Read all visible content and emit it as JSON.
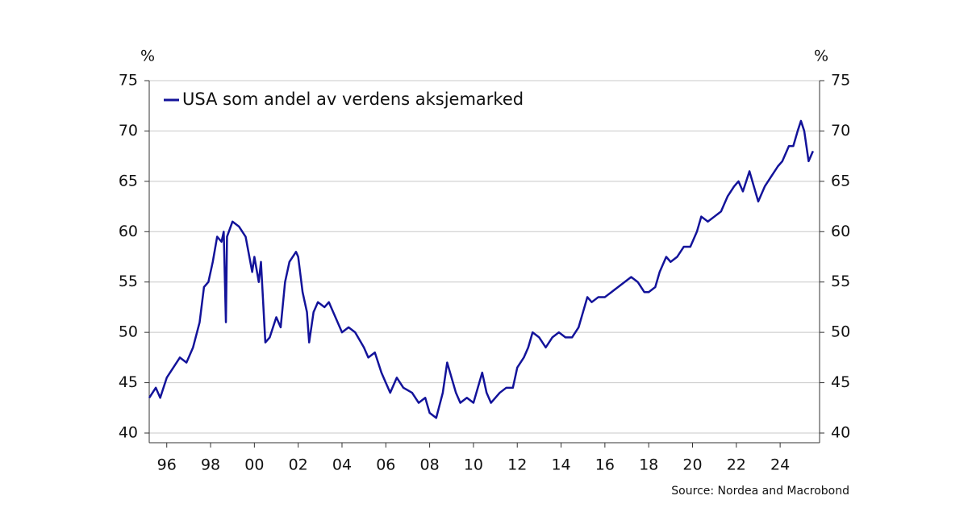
{
  "chart_data": {
    "type": "line",
    "y_unit": "%",
    "y2_unit": "%",
    "source": "Source: Nordea and Macrobond",
    "legend": "top-left",
    "grid": true,
    "xlim": [
      1995.2,
      2025.8
    ],
    "xticks": [
      {
        "value": 1996,
        "label": "96"
      },
      {
        "value": 1998,
        "label": "98"
      },
      {
        "value": 2000,
        "label": "00"
      },
      {
        "value": 2002,
        "label": "02"
      },
      {
        "value": 2004,
        "label": "04"
      },
      {
        "value": 2006,
        "label": "06"
      },
      {
        "value": 2008,
        "label": "08"
      },
      {
        "value": 2010,
        "label": "10"
      },
      {
        "value": 2012,
        "label": "12"
      },
      {
        "value": 2014,
        "label": "14"
      },
      {
        "value": 2016,
        "label": "16"
      },
      {
        "value": 2018,
        "label": "18"
      },
      {
        "value": 2020,
        "label": "20"
      },
      {
        "value": 2022,
        "label": "22"
      },
      {
        "value": 2024,
        "label": "24"
      }
    ],
    "ylim": [
      40,
      75
    ],
    "yticks": [
      40,
      45,
      50,
      55,
      60,
      65,
      70,
      75
    ],
    "y2lim": [
      40,
      75
    ],
    "y2ticks": [
      40,
      45,
      50,
      55,
      60,
      65,
      70,
      75
    ],
    "x": [
      1995.2,
      1995.5,
      1995.7,
      1996,
      1996.3,
      1996.6,
      1996.9,
      1997.2,
      1997.5,
      1997.7,
      1997.9,
      1998.1,
      1998.3,
      1998.5,
      1998.6,
      1998.7,
      1998.75,
      1999,
      1999.3,
      1999.6,
      1999.9,
      2000,
      2000.2,
      2000.3,
      2000.5,
      2000.7,
      2001,
      2001.2,
      2001.4,
      2001.6,
      2001.9,
      2002,
      2002.2,
      2002.4,
      2002.5,
      2002.7,
      2002.9,
      2003.2,
      2003.4,
      2003.7,
      2004,
      2004.3,
      2004.6,
      2005,
      2005.2,
      2005.5,
      2005.8,
      2006,
      2006.2,
      2006.5,
      2006.8,
      2007.2,
      2007.5,
      2007.8,
      2008,
      2008.3,
      2008.6,
      2008.8,
      2009,
      2009.2,
      2009.4,
      2009.7,
      2010,
      2010.2,
      2010.4,
      2010.6,
      2010.8,
      2011.2,
      2011.5,
      2011.8,
      2012,
      2012.3,
      2012.5,
      2012.7,
      2013,
      2013.3,
      2013.6,
      2013.9,
      2014.2,
      2014.5,
      2014.8,
      2015,
      2015.2,
      2015.4,
      2015.7,
      2016,
      2016.3,
      2016.6,
      2016.9,
      2017.2,
      2017.5,
      2017.8,
      2018,
      2018.3,
      2018.5,
      2018.8,
      2019,
      2019.3,
      2019.6,
      2019.9,
      2020.2,
      2020.4,
      2020.7,
      2021,
      2021.3,
      2021.6,
      2021.9,
      2022.1,
      2022.3,
      2022.6,
      2022.8,
      2023,
      2023.3,
      2023.6,
      2023.9,
      2024.1,
      2024.4,
      2024.6,
      2024.8,
      2024.95,
      2025.1,
      2025.3,
      2025.5
    ],
    "series": [
      {
        "name": "USA som andel av verdens aksjemarked",
        "color": "#13139a",
        "values": [
          43.5,
          44.5,
          43.5,
          45.5,
          46.5,
          47.5,
          47,
          48.5,
          51,
          54.5,
          55,
          57,
          59.5,
          59,
          60,
          51,
          59.5,
          61,
          60.5,
          59.5,
          56,
          57.5,
          55,
          57,
          49,
          49.5,
          51.5,
          50.5,
          55,
          57,
          58,
          57.5,
          54,
          52,
          49,
          52,
          53,
          52.5,
          53,
          51.5,
          50,
          50.5,
          50,
          48.5,
          47.5,
          48,
          46,
          45,
          44,
          45.5,
          44.5,
          44,
          43,
          43.5,
          42,
          41.5,
          44,
          47,
          45.5,
          44,
          43,
          43.5,
          43,
          44.5,
          46,
          44,
          43,
          44,
          44.5,
          44.5,
          46.5,
          47.5,
          48.5,
          50,
          49.5,
          48.5,
          49.5,
          50,
          49.5,
          49.5,
          50.5,
          52,
          53.5,
          53,
          53.5,
          53.5,
          54,
          54.5,
          55,
          55.5,
          55,
          54,
          54,
          54.5,
          56,
          57.5,
          57,
          57.5,
          58.5,
          58.5,
          60,
          61.5,
          61,
          61.5,
          62,
          63.5,
          64.5,
          65,
          64,
          66,
          64.5,
          63,
          64.5,
          65.5,
          66.5,
          67,
          68.5,
          68.5,
          70,
          71,
          70,
          67,
          68
        ]
      }
    ]
  }
}
